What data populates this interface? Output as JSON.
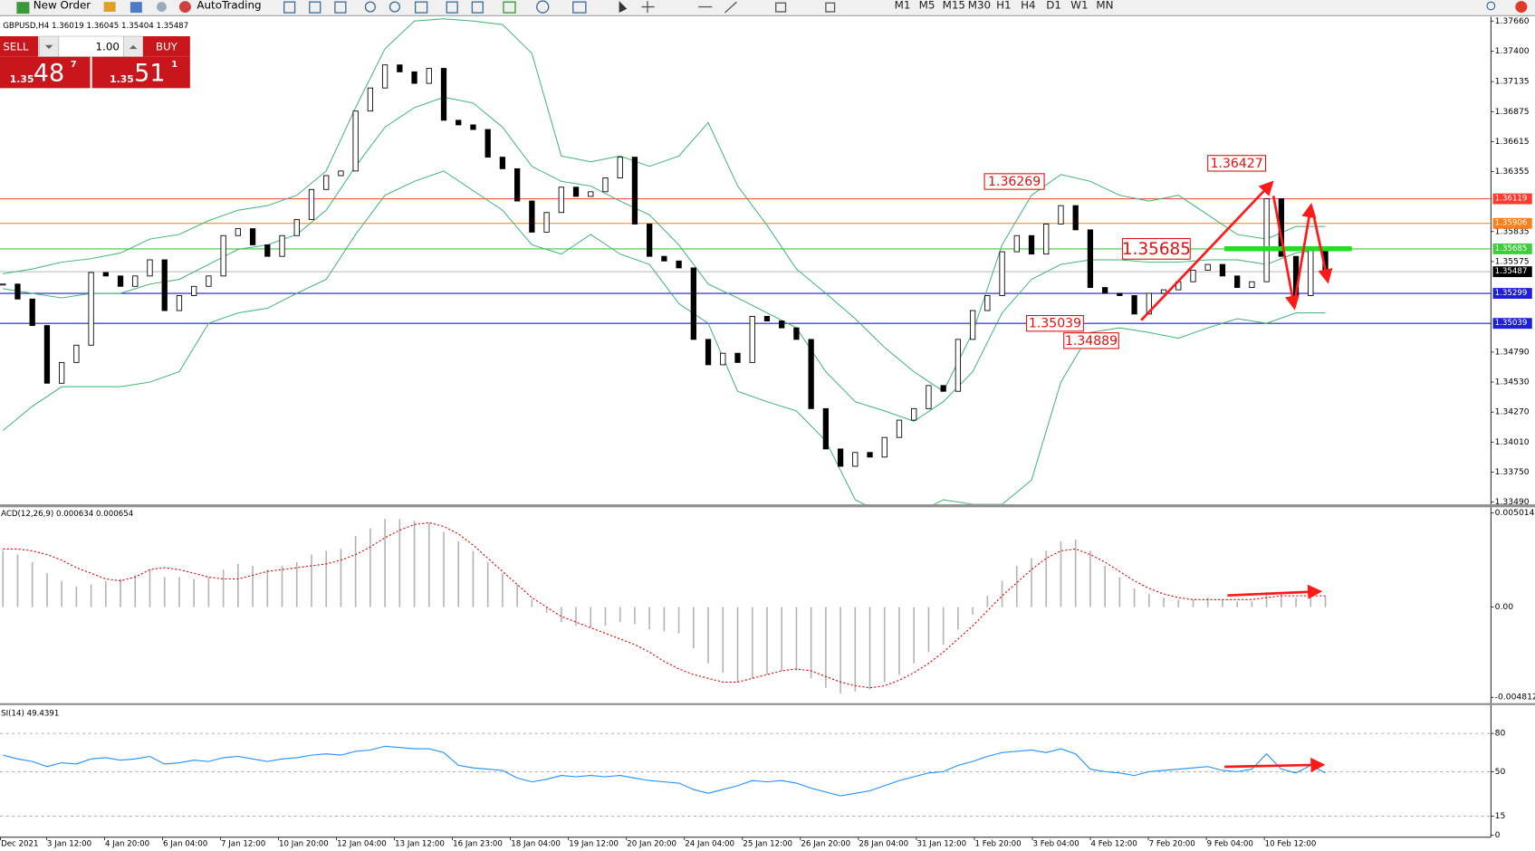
{
  "toolbar": {
    "new_order": "New Order",
    "auto_trading": "AutoTrading",
    "timeframes": [
      "M1",
      "M5",
      "M15",
      "M30",
      "H1",
      "H4",
      "D1",
      "W1",
      "MN"
    ]
  },
  "trade_panel": {
    "sell": "SELL",
    "buy": "BUY",
    "lots": "1.00",
    "bid_big": "1.35",
    "bid": "48",
    "bid_pip": "7",
    "ask_big": "1.35",
    "ask": "51",
    "ask_pip": "1"
  },
  "chart_data": [
    {
      "type": "candlestick",
      "title": "GBPUSD,H4 1.36019 1.36045 1.35404 1.35487",
      "close": [
        1.3538,
        1.3525,
        1.3502,
        1.3452,
        1.347,
        1.3485,
        1.3548,
        1.3545,
        1.3536,
        1.3545,
        1.3559,
        1.3515,
        1.3528,
        1.3536,
        1.3545,
        1.358,
        1.3586,
        1.3572,
        1.3562,
        1.358,
        1.3594,
        1.362,
        1.3632,
        1.3636,
        1.3688,
        1.3708,
        1.3728,
        1.3722,
        1.3712,
        1.3725,
        1.368,
        1.3676,
        1.3672,
        1.3648,
        1.3638,
        1.361,
        1.3583,
        1.36,
        1.3622,
        1.3614,
        1.3618,
        1.363,
        1.3648,
        1.359,
        1.3562,
        1.3558,
        1.3552,
        1.349,
        1.3468,
        1.3478,
        1.347,
        1.351,
        1.3506,
        1.35,
        1.349,
        1.343,
        1.3395,
        1.338,
        1.3392,
        1.3388,
        1.3405,
        1.342,
        1.343,
        1.345,
        1.3445,
        1.349,
        1.3515,
        1.3528,
        1.3566,
        1.358,
        1.3564,
        1.359,
        1.3606,
        1.3585,
        1.3535,
        1.353,
        1.3528,
        1.3512,
        1.353,
        1.3533,
        1.354,
        1.355,
        1.3555,
        1.3545,
        1.3535,
        1.354,
        1.3612,
        1.3562,
        1.3528,
        1.357,
        1.35487
      ],
      "series": [
        {
          "color": "#3cb371",
          "values": [
            1.3547,
            1.3551,
            1.3557,
            1.356,
            1.3565,
            1.3577,
            1.3581,
            1.3593,
            1.3602,
            1.3606,
            1.3615,
            1.3636,
            1.3691,
            1.3742,
            1.3766,
            1.3768,
            1.3766,
            1.3763,
            1.3738,
            1.3649,
            1.3644,
            1.3649,
            1.364,
            1.3649,
            1.3678,
            1.3623,
            1.3589,
            1.3551,
            1.353,
            1.3508,
            1.3483,
            1.3462,
            1.3445,
            1.3496,
            1.3572,
            1.3615,
            1.3633,
            1.3627,
            1.3615,
            1.361,
            1.3615,
            1.3598,
            1.3581,
            1.3577,
            1.3588,
            1.3588
          ]
        },
        {
          "color": "#3cb371",
          "values": [
            1.3534,
            1.353,
            1.3526,
            1.353,
            1.353,
            1.3538,
            1.3542,
            1.3555,
            1.3568,
            1.3572,
            1.3581,
            1.3602,
            1.364,
            1.3674,
            1.3691,
            1.37,
            1.3695,
            1.3674,
            1.364,
            1.3627,
            1.3623,
            1.361,
            1.3598,
            1.3572,
            1.3538,
            1.3526,
            1.3513,
            1.35,
            1.3462,
            1.3436,
            1.3428,
            1.3419,
            1.3436,
            1.3462,
            1.3513,
            1.3542,
            1.3555,
            1.3559,
            1.3559,
            1.3557,
            1.3557,
            1.3559,
            1.3559,
            1.3555,
            1.3565,
            1.3568
          ]
        },
        {
          "color": "#3cb371",
          "values": [
            1.3411,
            1.3432,
            1.3449,
            1.3449,
            1.3449,
            1.3453,
            1.3462,
            1.3504,
            1.3513,
            1.3517,
            1.353,
            1.3542,
            1.3581,
            1.3615,
            1.3627,
            1.3636,
            1.3619,
            1.3602,
            1.3572,
            1.3564,
            1.3581,
            1.3564,
            1.3555,
            1.3521,
            1.3504,
            1.3445,
            1.3436,
            1.3428,
            1.3402,
            1.3351,
            1.3338,
            1.3338,
            1.3351,
            1.3347,
            1.3347,
            1.3368,
            1.3453,
            1.3496,
            1.35,
            1.3496,
            1.3491,
            1.35,
            1.3508,
            1.3504,
            1.3513,
            1.3513
          ]
        }
      ],
      "ylim": [
        1.3347,
        1.3769
      ],
      "yticks": [
        {
          "value": 1.3766,
          "label": "1.37660"
        },
        {
          "value": 1.374,
          "label": "1.37400"
        },
        1.37135,
        1.36875,
        1.36615,
        1.36355,
        1.35835,
        1.35575,
        {
          "value": 1.3479,
          "label": "1.34790"
        },
        {
          "value": 1.3453,
          "label": "1.34530"
        },
        {
          "value": 1.3427,
          "label": "1.34270"
        },
        {
          "value": 1.3401,
          "label": "1.34010"
        },
        {
          "value": 1.3375,
          "label": "1.33750"
        },
        {
          "value": 1.3349,
          "label": "1.33490"
        }
      ],
      "levels": [
        {
          "value": 1.36119,
          "label": "1.36119",
          "color": "#ff3b30"
        },
        {
          "value": 1.35906,
          "label": "1.35906",
          "color": "#ff7f1a"
        },
        {
          "value": 1.35685,
          "label": "1.35685",
          "color": "#3ccc3c"
        },
        {
          "value": 1.35487,
          "label": "1.35487",
          "color": "#000000"
        },
        {
          "value": 1.35299,
          "label": "1.35299",
          "color": "#1f1fd6"
        },
        {
          "value": 1.35039,
          "label": "1.35039",
          "color": "#1f1fd6"
        }
      ],
      "annotations": [
        {
          "value": 1.36269,
          "label": "1.36269"
        },
        {
          "value": 1.36427,
          "label": "1.36427"
        },
        {
          "value": 1.35685,
          "label": "1.35685"
        },
        {
          "value": 1.35039,
          "label": "1.35039"
        },
        {
          "value": 1.34889,
          "label": "1.34889"
        }
      ]
    },
    {
      "type": "macd",
      "title": "ACD(12,26,9) 0.000634 0.000654",
      "histogram": [
        0.003,
        0.0028,
        0.0024,
        0.0018,
        0.0014,
        0.0011,
        0.0012,
        0.0014,
        0.0015,
        0.0017,
        0.002,
        0.0016,
        0.0016,
        0.0015,
        0.0016,
        0.002,
        0.0023,
        0.0022,
        0.002,
        0.0022,
        0.0024,
        0.0028,
        0.003,
        0.0031,
        0.0038,
        0.0042,
        0.0047,
        0.0047,
        0.0046,
        0.0045,
        0.004,
        0.0035,
        0.003,
        0.0024,
        0.0018,
        0.0012,
        0.0004,
        -0.0003,
        -0.0008,
        -0.001,
        -0.0011,
        -0.001,
        -0.0008,
        -0.0009,
        -0.0012,
        -0.0013,
        -0.0014,
        -0.0022,
        -0.003,
        -0.0035,
        -0.004,
        -0.0038,
        -0.0036,
        -0.0034,
        -0.0034,
        -0.0038,
        -0.0043,
        -0.0046,
        -0.0045,
        -0.0044,
        -0.004,
        -0.0036,
        -0.003,
        -0.0024,
        -0.002,
        -0.0012,
        -0.0004,
        0.0006,
        0.0014,
        0.0022,
        0.0026,
        0.003,
        0.0035,
        0.0036,
        0.003,
        0.0022,
        0.0016,
        0.001,
        0.0007,
        0.0005,
        0.0004,
        0.0004,
        0.0005,
        0.0004,
        0.0003,
        0.0003,
        0.0008,
        0.0008,
        0.0005,
        0.0007,
        0.0006
      ],
      "signal": [
        0.0031,
        0.0031,
        0.003,
        0.0028,
        0.0025,
        0.0021,
        0.0018,
        0.0015,
        0.0014,
        0.0016,
        0.002,
        0.0021,
        0.002,
        0.0018,
        0.0016,
        0.0015,
        0.0015,
        0.0017,
        0.0019,
        0.002,
        0.0021,
        0.0022,
        0.0023,
        0.0025,
        0.0028,
        0.0032,
        0.0037,
        0.0041,
        0.0044,
        0.0045,
        0.0043,
        0.0039,
        0.0033,
        0.0026,
        0.0019,
        0.0012,
        0.0005,
        0,
        -0.0005,
        -0.0008,
        -0.0011,
        -0.0014,
        -0.0017,
        -0.002,
        -0.0024,
        -0.0029,
        -0.0033,
        -0.0036,
        -0.0038,
        -0.004,
        -0.004,
        -0.0038,
        -0.0036,
        -0.0034,
        -0.0033,
        -0.0034,
        -0.0037,
        -0.004,
        -0.0042,
        -0.0043,
        -0.0042,
        -0.0039,
        -0.0035,
        -0.003,
        -0.0024,
        -0.0017,
        -0.001,
        -0.0002,
        0.0006,
        0.0013,
        0.002,
        0.0026,
        0.003,
        0.0031,
        0.0028,
        0.0024,
        0.0019,
        0.0014,
        0.001,
        0.0007,
        0.0005,
        0.0004,
        0.0004,
        0.0004,
        0.0004,
        0.0004,
        0.0005,
        0.0006,
        0.0006,
        0.0006,
        0.0006
      ],
      "histogram_color": "#b4b4b4",
      "signal_color": "#e00000",
      "ylim": [
        -0.00507,
        0.00527
      ],
      "yticks": [
        0.005014,
        {
          "value": 0,
          "label": "0.00"
        },
        -0.004812
      ]
    },
    {
      "type": "rsi",
      "title": "SI(14) 49.4391",
      "values": [
        63,
        60,
        58,
        54,
        57,
        56,
        60,
        61,
        59,
        60,
        62,
        56,
        57,
        59,
        58,
        61,
        62,
        60,
        58,
        60,
        61,
        63,
        64,
        63,
        66,
        67,
        70,
        69,
        68,
        68,
        65,
        55,
        53,
        52,
        51,
        45,
        42,
        44,
        47,
        46,
        47,
        46,
        47,
        45,
        43,
        42,
        41,
        36,
        33,
        36,
        39,
        43,
        42,
        43,
        41,
        37,
        34,
        31,
        33,
        35,
        39,
        43,
        46,
        49,
        50,
        55,
        58,
        62,
        65,
        66,
        67,
        65,
        68,
        64,
        52,
        50,
        49,
        47,
        50,
        51,
        52,
        53,
        54,
        51,
        50,
        52,
        64,
        52,
        49,
        55,
        49
      ],
      "color": "#1e90ff",
      "ylim": [
        0,
        101.5
      ],
      "yticks": [
        80,
        50,
        15,
        0
      ]
    }
  ],
  "date_labels": [
    "Dec 2021",
    "3 Jan 12:00",
    "4 Jan 20:00",
    "6 Jan 04:00",
    "7 Jan 12:00",
    "10 Jan 20:00",
    "12 Jan 04:00",
    "13 Jan 12:00",
    "16 Jan 23:00",
    "18 Jan 04:00",
    "19 Jan 12:00",
    "20 Jan 20:00",
    "24 Jan 04:00",
    "25 Jan 12:00",
    "26 Jan 20:00",
    "28 Jan 04:00",
    "31 Jan 12:00",
    "1 Feb 20:00",
    "3 Feb 04:00",
    "4 Feb 12:00",
    "7 Feb 20:00",
    "9 Feb 04:00",
    "10 Feb 12:00"
  ]
}
